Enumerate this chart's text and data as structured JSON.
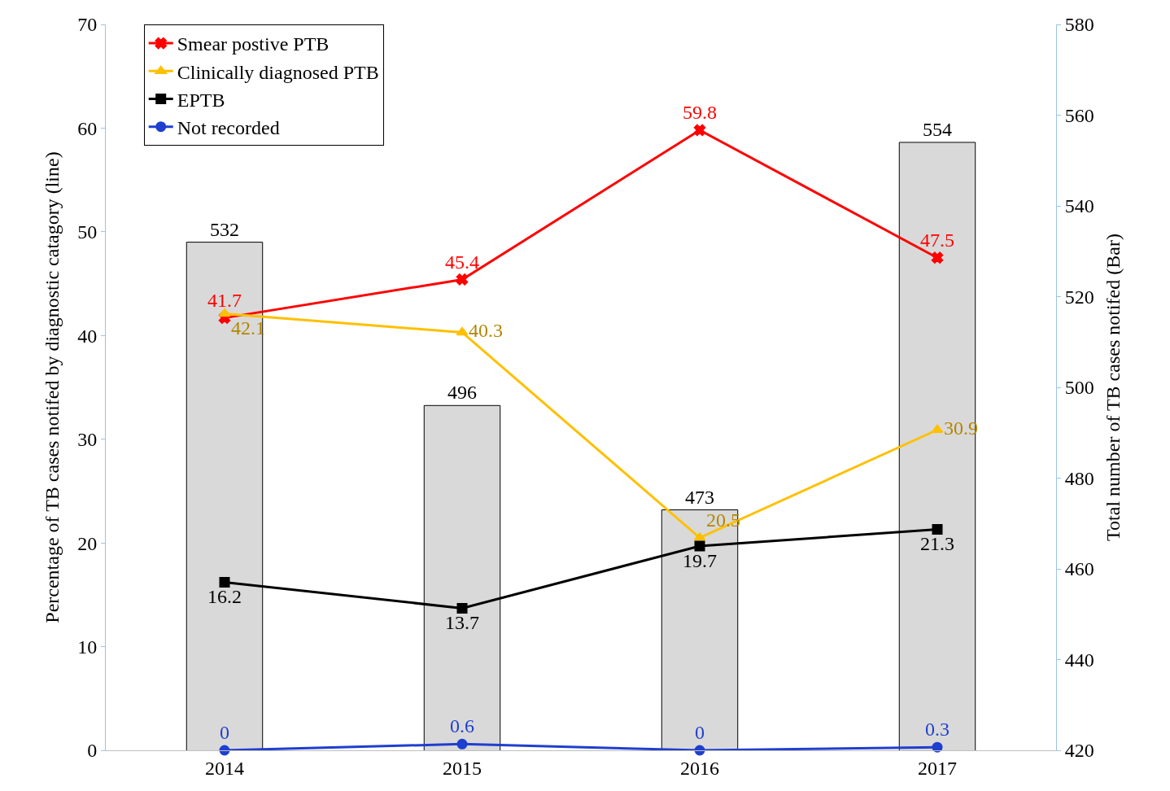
{
  "chart_data": {
    "type": "line",
    "categories": [
      "2014",
      "2015",
      "2016",
      "2017"
    ],
    "ylabel": "Percentage of TB cases notifed by diagnostic catagory (line)",
    "y2label": "Total number of TB cases notifed (Bar)",
    "ylim": [
      0,
      70
    ],
    "yticks": [
      0,
      10,
      20,
      30,
      40,
      50,
      60,
      70
    ],
    "y2lim": [
      420,
      580
    ],
    "y2ticks": [
      420,
      440,
      460,
      480,
      500,
      520,
      540,
      560,
      580
    ],
    "series": [
      {
        "type": "bar",
        "axis": "y2",
        "color": "#d9d9d9",
        "values": [
          532,
          496,
          473,
          554
        ]
      },
      {
        "name": "Smear postive PTB",
        "color": "#ff0000",
        "marker": "cross",
        "values": [
          41.7,
          45.4,
          59.8,
          47.5
        ]
      },
      {
        "name": "Clinically diagnosed PTB",
        "color": "#ffc000",
        "marker": "triangle",
        "values": [
          42.1,
          40.3,
          20.5,
          30.9
        ]
      },
      {
        "name": "EPTB",
        "color": "#000000",
        "marker": "square",
        "values": [
          16.2,
          13.7,
          19.7,
          21.3
        ]
      },
      {
        "name": "Not recorded",
        "color": "#1f3fcf",
        "marker": "circle",
        "values": [
          0,
          0.6,
          0,
          0.3
        ]
      }
    ],
    "data_labels": true,
    "legend": "top left",
    "line_style": "solid"
  }
}
